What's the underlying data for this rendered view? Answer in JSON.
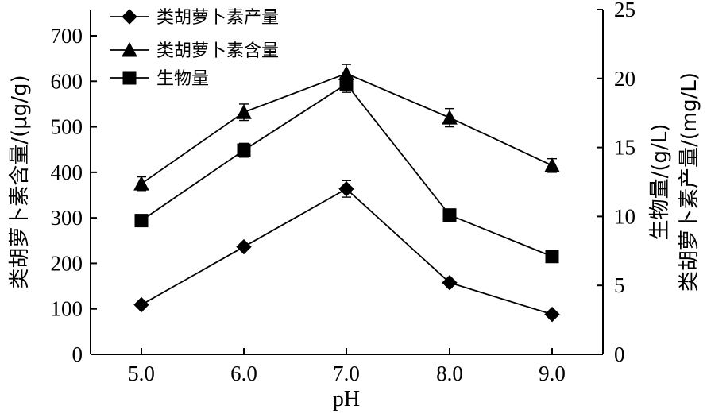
{
  "chart_data": {
    "type": "line",
    "title": "",
    "x": [
      "5.0",
      "6.0",
      "7.0",
      "8.0",
      "9.0"
    ],
    "xlabel": "pH",
    "ylabel_left": "类胡萝卜素含量/(μg/g)",
    "ylabel_right_1": "生物量/(g/L)",
    "ylabel_right_2": "类胡萝卜素产量/(mg/L)",
    "ylim_left": [
      0,
      700
    ],
    "ylim_right": [
      0,
      25
    ],
    "yticks_left": [
      "0",
      "100",
      "200",
      "300",
      "400",
      "500",
      "600",
      "700"
    ],
    "yticks_right": [
      "0",
      "5",
      "10",
      "15",
      "20",
      "25"
    ],
    "legend_position": "top-left",
    "grid": false,
    "series": [
      {
        "name": "类胡萝卜素产量",
        "marker": "diamond",
        "axis": "right",
        "values": [
          3.6,
          7.8,
          12.0,
          5.2,
          2.9
        ],
        "errors": [
          0.0,
          0.2,
          0.6,
          0.1,
          0.1
        ]
      },
      {
        "name": "类胡萝卜素含量",
        "marker": "triangle",
        "axis": "left",
        "values": [
          375,
          532,
          617,
          520,
          415
        ],
        "errors": [
          15,
          18,
          20,
          20,
          15
        ]
      },
      {
        "name": "生物量",
        "marker": "square",
        "axis": "right",
        "values": [
          9.7,
          14.8,
          19.6,
          10.1,
          7.1
        ],
        "errors": [
          0.0,
          0.5,
          0.6,
          0.0,
          0.0
        ]
      }
    ]
  }
}
